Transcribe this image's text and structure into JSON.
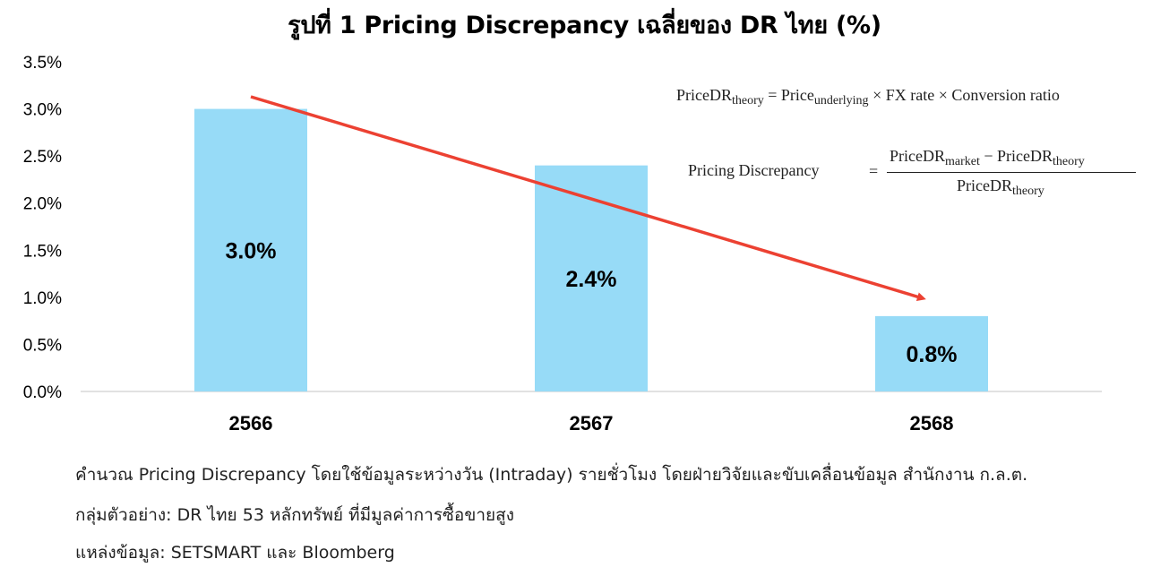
{
  "chart_data": {
    "type": "bar",
    "title": "รูปที่ 1 Pricing Discrepancy เฉลี่ยของ DR ไทย (%)",
    "categories": [
      "2566",
      "2567",
      "2568"
    ],
    "values": [
      3.0,
      2.4,
      0.8
    ],
    "data_labels": [
      "3.0%",
      "2.4%",
      "0.8%"
    ],
    "y_ticks": [
      "0.0%",
      "0.5%",
      "1.0%",
      "1.5%",
      "2.0%",
      "2.5%",
      "3.0%",
      "3.5%"
    ],
    "ylim": [
      0,
      3.5
    ],
    "grid": false,
    "legend": "none",
    "bar_color": "#97dbf7",
    "trend_arrow_color": "#ec4132"
  },
  "formulas": {
    "f1": {
      "a": "PriceDR",
      "a_sub": "theory",
      "eq": " = Price",
      "b_sub": "underlying",
      "rest": " × FX rate × Conversion ratio"
    },
    "f2": {
      "left": "Pricing Discrepancy",
      "eq": "=",
      "num_a": "PriceDR",
      "num_a_sub": "market",
      "num_minus": " − PriceDR",
      "num_b_sub": "theory",
      "den": "PriceDR",
      "den_sub": "theory"
    }
  },
  "notes": {
    "n1": "คำนวณ Pricing Discrepancy โดยใช้ข้อมูลระหว่างวัน (Intraday) รายชั่วโมง โดยฝ่ายวิจัยและขับเคลื่อนข้อมูล สำนักงาน ก.ล.ต.",
    "n2": "กลุ่มตัวอย่าง: DR ไทย 53 หลักทรัพย์ ที่มีมูลค่าการซื้อขายสูง",
    "n3": "แหล่งข้อมูล: SETSMART และ Bloomberg"
  }
}
